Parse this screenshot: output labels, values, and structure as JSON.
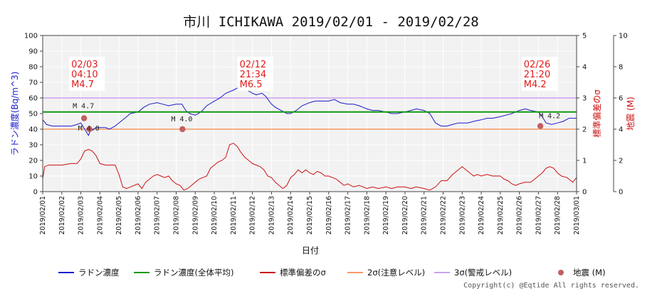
{
  "chart_data": {
    "type": "line",
    "title": "市川 ICHIKAWA 2019/02/01 - 2019/02/28",
    "xlabel": "日付",
    "ylabel_left": "ラドン濃度(Bq/m^3)",
    "ylabel_right1": "標準偏差のσ",
    "ylabel_right2": "地震 (M)",
    "x_ticks": [
      "2019/02/01",
      "2019/02/02",
      "2019/02/03",
      "2019/02/04",
      "2019/02/05",
      "2019/02/06",
      "2019/02/07",
      "2019/02/08",
      "2019/02/09",
      "2019/02/10",
      "2019/02/11",
      "2019/02/12",
      "2019/02/13",
      "2019/02/14",
      "2019/02/15",
      "2019/02/16",
      "2019/02/17",
      "2019/02/18",
      "2019/02/19",
      "2019/02/20",
      "2019/02/21",
      "2019/02/22",
      "2019/02/23",
      "2019/02/24",
      "2019/02/25",
      "2019/02/26",
      "2019/02/27",
      "2019/02/28",
      "2019/03/01"
    ],
    "xlim_days": [
      0,
      28
    ],
    "ylim_left": [
      0,
      100
    ],
    "left_ticks": [
      "0",
      "10",
      "20",
      "30",
      "40",
      "50",
      "60",
      "70",
      "80",
      "90",
      "100"
    ],
    "ylim_sigma": [
      0,
      5
    ],
    "sigma_ticks": [
      "0",
      "1",
      "2",
      "3",
      "4",
      "5"
    ],
    "ylim_mag": [
      0,
      10
    ],
    "mag_ticks": [
      "0",
      "2",
      "4",
      "6",
      "8",
      "10"
    ],
    "grid": true,
    "legend_position": "bottom",
    "colors": {
      "radon": "#1a1acc",
      "mean": "#119911",
      "sigma": "#cc1111",
      "two_sigma": "#f59a64",
      "three_sigma": "#c9a0f0",
      "quake": "#c06060",
      "plot_bg": "#f2f2f2",
      "grid": "#ffffff"
    },
    "mean_level": 51,
    "two_sigma_level": 40,
    "three_sigma_level": 60,
    "series": [
      {
        "name": "ラドン濃度",
        "axis": "left",
        "points": [
          [
            0,
            46
          ],
          [
            0.2,
            43
          ],
          [
            0.5,
            42
          ],
          [
            1,
            42
          ],
          [
            1.5,
            42
          ],
          [
            1.8,
            43
          ],
          [
            2,
            44
          ],
          [
            2.2,
            40
          ],
          [
            2.3,
            38
          ],
          [
            2.4,
            36
          ],
          [
            2.5,
            39
          ],
          [
            2.8,
            41
          ],
          [
            3,
            41
          ],
          [
            3.3,
            41
          ],
          [
            3.5,
            40
          ],
          [
            3.8,
            42
          ],
          [
            4,
            44
          ],
          [
            4.3,
            47
          ],
          [
            4.6,
            50
          ],
          [
            5,
            51
          ],
          [
            5.3,
            54
          ],
          [
            5.6,
            56
          ],
          [
            6,
            57
          ],
          [
            6.3,
            56
          ],
          [
            6.6,
            55
          ],
          [
            7,
            56
          ],
          [
            7.3,
            56
          ],
          [
            7.5,
            52
          ],
          [
            7.7,
            50
          ],
          [
            8,
            49
          ],
          [
            8.3,
            51
          ],
          [
            8.6,
            55
          ],
          [
            9,
            58
          ],
          [
            9.3,
            60
          ],
          [
            9.6,
            63
          ],
          [
            10,
            65
          ],
          [
            10.3,
            67
          ],
          [
            10.6,
            66
          ],
          [
            11,
            63
          ],
          [
            11.2,
            62
          ],
          [
            11.5,
            63
          ],
          [
            11.7,
            61
          ],
          [
            12,
            56
          ],
          [
            12.2,
            54
          ],
          [
            12.5,
            52
          ],
          [
            12.8,
            50
          ],
          [
            13,
            50
          ],
          [
            13.3,
            52
          ],
          [
            13.6,
            55
          ],
          [
            14,
            57
          ],
          [
            14.3,
            58
          ],
          [
            14.6,
            58
          ],
          [
            15,
            58
          ],
          [
            15.3,
            59
          ],
          [
            15.6,
            57
          ],
          [
            16,
            56
          ],
          [
            16.3,
            56
          ],
          [
            16.6,
            55
          ],
          [
            17,
            53
          ],
          [
            17.3,
            52
          ],
          [
            17.6,
            52
          ],
          [
            18,
            51
          ],
          [
            18.3,
            50
          ],
          [
            18.6,
            50
          ],
          [
            19,
            51
          ],
          [
            19.3,
            52
          ],
          [
            19.6,
            53
          ],
          [
            20,
            52
          ],
          [
            20.3,
            50
          ],
          [
            20.6,
            44
          ],
          [
            20.9,
            42
          ],
          [
            21.2,
            42
          ],
          [
            21.5,
            43
          ],
          [
            21.8,
            44
          ],
          [
            22,
            44
          ],
          [
            22.3,
            44
          ],
          [
            22.6,
            45
          ],
          [
            23,
            46
          ],
          [
            23.3,
            47
          ],
          [
            23.6,
            47
          ],
          [
            24,
            48
          ],
          [
            24.3,
            49
          ],
          [
            24.6,
            50
          ],
          [
            25,
            52
          ],
          [
            25.3,
            53
          ],
          [
            25.6,
            52
          ],
          [
            26,
            51
          ],
          [
            26.2,
            48
          ],
          [
            26.4,
            44
          ],
          [
            26.7,
            43
          ],
          [
            27,
            44
          ],
          [
            27.3,
            45
          ],
          [
            27.6,
            47
          ],
          [
            27.9,
            47
          ],
          [
            28,
            47
          ]
        ]
      },
      {
        "name": "標準偏差のσ",
        "axis": "sigma",
        "points": [
          [
            0,
            0.4
          ],
          [
            0.1,
            0.8
          ],
          [
            0.3,
            0.85
          ],
          [
            1,
            0.85
          ],
          [
            1.5,
            0.9
          ],
          [
            1.8,
            0.9
          ],
          [
            2,
            1.05
          ],
          [
            2.2,
            1.3
          ],
          [
            2.4,
            1.35
          ],
          [
            2.6,
            1.3
          ],
          [
            2.8,
            1.15
          ],
          [
            3,
            0.9
          ],
          [
            3.3,
            0.85
          ],
          [
            3.6,
            0.85
          ],
          [
            3.8,
            0.85
          ],
          [
            4,
            0.55
          ],
          [
            4.2,
            0.15
          ],
          [
            4.4,
            0.1
          ],
          [
            4.6,
            0.15
          ],
          [
            5,
            0.25
          ],
          [
            5.2,
            0.1
          ],
          [
            5.4,
            0.3
          ],
          [
            5.6,
            0.4
          ],
          [
            5.8,
            0.5
          ],
          [
            6,
            0.55
          ],
          [
            6.2,
            0.5
          ],
          [
            6.4,
            0.45
          ],
          [
            6.6,
            0.5
          ],
          [
            6.8,
            0.35
          ],
          [
            7,
            0.25
          ],
          [
            7.2,
            0.2
          ],
          [
            7.4,
            0.05
          ],
          [
            7.6,
            0.1
          ],
          [
            7.8,
            0.2
          ],
          [
            8,
            0.3
          ],
          [
            8.2,
            0.4
          ],
          [
            8.4,
            0.45
          ],
          [
            8.6,
            0.5
          ],
          [
            8.8,
            0.75
          ],
          [
            9,
            0.85
          ],
          [
            9.2,
            0.95
          ],
          [
            9.4,
            1.0
          ],
          [
            9.6,
            1.1
          ],
          [
            9.8,
            1.5
          ],
          [
            10,
            1.55
          ],
          [
            10.2,
            1.45
          ],
          [
            10.4,
            1.25
          ],
          [
            10.6,
            1.1
          ],
          [
            10.8,
            1.0
          ],
          [
            11,
            0.9
          ],
          [
            11.2,
            0.85
          ],
          [
            11.4,
            0.8
          ],
          [
            11.6,
            0.7
          ],
          [
            11.8,
            0.5
          ],
          [
            12,
            0.45
          ],
          [
            12.2,
            0.3
          ],
          [
            12.4,
            0.2
          ],
          [
            12.6,
            0.1
          ],
          [
            12.8,
            0.2
          ],
          [
            13,
            0.45
          ],
          [
            13.2,
            0.55
          ],
          [
            13.4,
            0.7
          ],
          [
            13.6,
            0.6
          ],
          [
            13.8,
            0.7
          ],
          [
            14,
            0.6
          ],
          [
            14.2,
            0.55
          ],
          [
            14.4,
            0.65
          ],
          [
            14.6,
            0.6
          ],
          [
            14.8,
            0.5
          ],
          [
            15,
            0.5
          ],
          [
            15.2,
            0.45
          ],
          [
            15.4,
            0.4
          ],
          [
            15.6,
            0.3
          ],
          [
            15.8,
            0.2
          ],
          [
            16,
            0.25
          ],
          [
            16.3,
            0.15
          ],
          [
            16.6,
            0.2
          ],
          [
            17,
            0.1
          ],
          [
            17.3,
            0.15
          ],
          [
            17.6,
            0.1
          ],
          [
            18,
            0.15
          ],
          [
            18.3,
            0.1
          ],
          [
            18.6,
            0.15
          ],
          [
            19,
            0.15
          ],
          [
            19.3,
            0.1
          ],
          [
            19.6,
            0.15
          ],
          [
            20,
            0.1
          ],
          [
            20.3,
            0.05
          ],
          [
            20.6,
            0.15
          ],
          [
            20.9,
            0.35
          ],
          [
            21.2,
            0.35
          ],
          [
            21.5,
            0.55
          ],
          [
            21.8,
            0.7
          ],
          [
            22,
            0.8
          ],
          [
            22.2,
            0.7
          ],
          [
            22.4,
            0.6
          ],
          [
            22.6,
            0.5
          ],
          [
            22.8,
            0.55
          ],
          [
            23,
            0.5
          ],
          [
            23.3,
            0.55
          ],
          [
            23.6,
            0.5
          ],
          [
            24,
            0.5
          ],
          [
            24.2,
            0.4
          ],
          [
            24.4,
            0.35
          ],
          [
            24.6,
            0.25
          ],
          [
            24.8,
            0.2
          ],
          [
            25,
            0.25
          ],
          [
            25.3,
            0.3
          ],
          [
            25.6,
            0.3
          ],
          [
            26,
            0.5
          ],
          [
            26.2,
            0.6
          ],
          [
            26.4,
            0.75
          ],
          [
            26.6,
            0.8
          ],
          [
            26.8,
            0.75
          ],
          [
            27,
            0.6
          ],
          [
            27.2,
            0.5
          ],
          [
            27.5,
            0.45
          ],
          [
            27.8,
            0.3
          ],
          [
            28,
            0.45
          ]
        ]
      }
    ],
    "earthquakes": [
      {
        "t": 2.17,
        "mag": 4.7,
        "label": "M 4.7"
      },
      {
        "t": 2.45,
        "mag": 4.0,
        "label": "M 4.0"
      },
      {
        "t": 7.33,
        "mag": 4.0,
        "label": "M 4.0"
      },
      {
        "t": 26.1,
        "mag": 4.2,
        "label": "M 4.2"
      }
    ],
    "annotations": [
      {
        "t": 2.17,
        "lines": [
          "02/03",
          "04:10",
          "M4.7"
        ]
      },
      {
        "t": 11.0,
        "lines": [
          "02/12",
          "21:34",
          "M6.5"
        ]
      },
      {
        "t": 25.9,
        "lines": [
          "02/26",
          "21:20",
          "M4.2"
        ]
      }
    ],
    "legend": [
      {
        "label": "ラドン濃度",
        "kind": "line",
        "color_key": "radon"
      },
      {
        "label": "ラドン濃度(全体平均)",
        "kind": "line",
        "color_key": "mean"
      },
      {
        "label": "標準偏差のσ",
        "kind": "line",
        "color_key": "sigma"
      },
      {
        "label": "2σ(注意レベル)",
        "kind": "line",
        "color_key": "two_sigma"
      },
      {
        "label": "3σ(警戒レベル)",
        "kind": "line",
        "color_key": "three_sigma"
      },
      {
        "label": "地震 (M)",
        "kind": "dot",
        "color_key": "quake"
      }
    ]
  },
  "copyright": "Copyright(c) @Eqtide All rights reserved."
}
